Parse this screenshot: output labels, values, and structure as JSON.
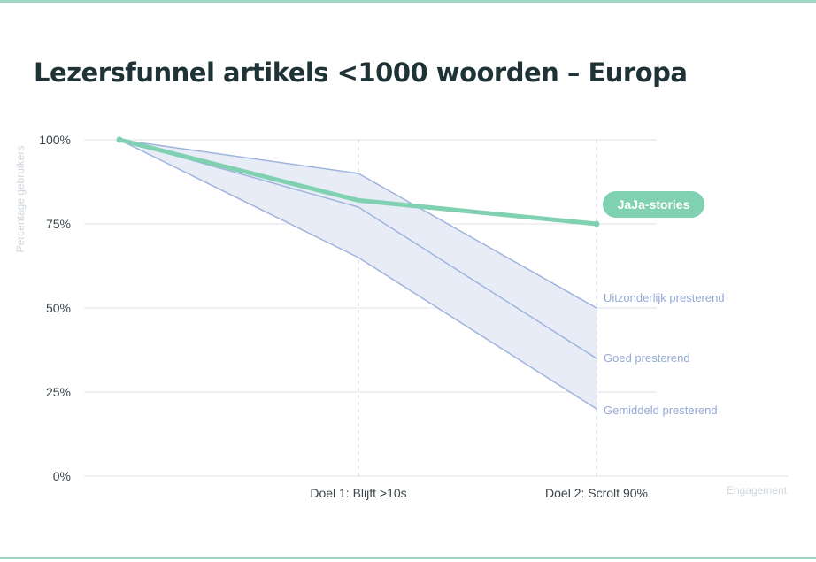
{
  "chart_data": {
    "type": "line",
    "title": "Lezersfunnel artikels <1000 woorden – Europa",
    "xlabel": "Engagement",
    "ylabel": "Percentage gebruikers",
    "categories": [
      "",
      "Doel 1: Blijft >10s",
      "Doel 2: Scrolt 90%"
    ],
    "ylim": [
      0,
      100
    ],
    "yticks": [
      0,
      25,
      50,
      75,
      100
    ],
    "ytick_labels": [
      "0%",
      "25%",
      "50%",
      "75%",
      "100%"
    ],
    "grid": true,
    "band": {
      "upper": "Uitzonderlijk presterend",
      "lower": "Gemiddeld presterend"
    },
    "series": [
      {
        "name": "Uitzonderlijk presterend",
        "values": [
          100,
          90,
          50
        ],
        "color": "#9fb4dd"
      },
      {
        "name": "Goed presterend",
        "values": [
          100,
          80,
          35
        ],
        "color": "#9fb4dd"
      },
      {
        "name": "Gemiddeld presterend",
        "values": [
          100,
          65,
          20
        ],
        "color": "#9fb4dd"
      },
      {
        "name": "JaJa-stories",
        "values": [
          100,
          82,
          75
        ],
        "color": "#7fd1b1",
        "highlight": true
      }
    ],
    "colors": {
      "band_fill": "#e7ecf7",
      "benchmark_line": "#9fb4dd",
      "highlight": "#7fd1b1",
      "grid": "#dde2e7",
      "title": "#1f3337"
    }
  }
}
